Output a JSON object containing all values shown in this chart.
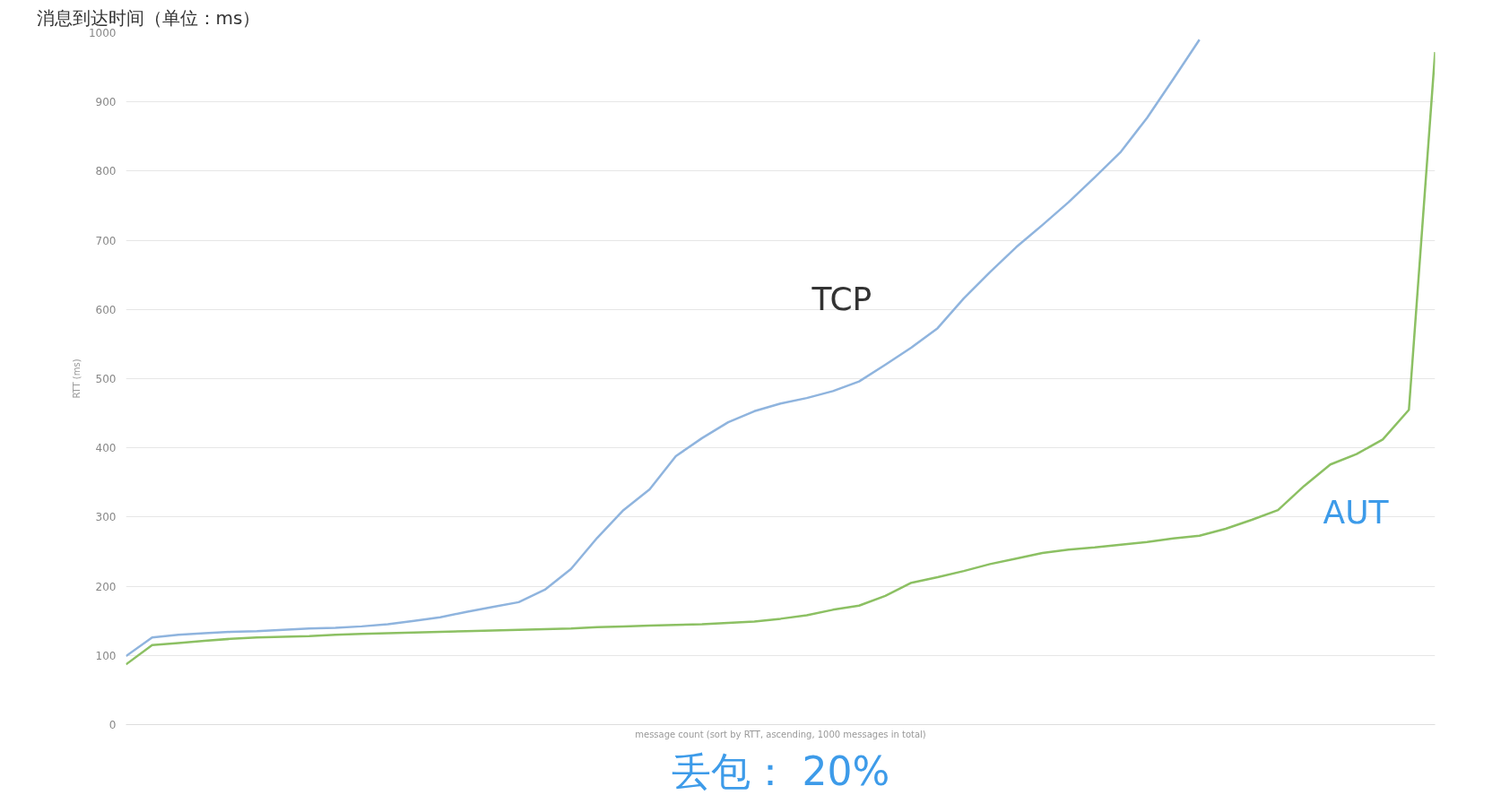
{
  "chart_data": {
    "type": "line",
    "title": "消息到达时间（单位：ms）",
    "xlabel": "message count (sort by RTT, ascending, 1000 messages in total)",
    "ylabel": "RTT (ms)",
    "annotations": [
      "丢包： 20%"
    ],
    "categories": [
      null,
      null,
      null,
      null,
      null,
      null,
      null,
      null,
      null,
      null,
      null,
      null,
      null,
      null,
      null,
      null,
      null,
      null,
      null,
      null,
      null,
      null,
      null,
      null,
      null,
      null,
      null,
      null,
      null,
      null,
      null,
      null,
      null,
      null,
      null,
      null,
      null,
      null,
      null,
      null,
      null,
      null,
      null,
      null,
      null,
      null,
      null,
      null,
      null,
      null,
      null
    ],
    "ylim": [
      0,
      1000
    ],
    "yticks": [
      0,
      100,
      200,
      300,
      400,
      500,
      600,
      700,
      800,
      900,
      1000
    ],
    "grid": "y",
    "legend": false,
    "series": [
      {
        "name": "TCP",
        "color": "#8fb4de",
        "values": [
          99,
          126,
          130,
          132,
          134,
          135,
          137,
          139,
          140,
          142,
          145,
          150,
          155,
          163,
          170,
          177,
          195,
          225,
          270,
          310,
          340,
          388,
          414,
          437,
          453,
          464,
          472,
          482,
          496,
          520,
          545,
          573,
          616,
          654,
          690,
          722,
          755,
          791,
          828,
          877,
          933,
          990,
          null,
          null,
          null,
          null,
          null,
          null,
          null,
          null,
          null
        ]
      },
      {
        "name": "AUT",
        "color": "#8cc063",
        "values": [
          87,
          115,
          118,
          121,
          124,
          126,
          127,
          128,
          130,
          131,
          132,
          133,
          134,
          135,
          136,
          137,
          138,
          139,
          141,
          142,
          143,
          144,
          145,
          147,
          149,
          153,
          158,
          166,
          172,
          186,
          205,
          213,
          222,
          232,
          240,
          248,
          253,
          256,
          260,
          264,
          269,
          273,
          283,
          296,
          310,
          345,
          376,
          391,
          412,
          455,
          972
        ]
      }
    ]
  }
}
